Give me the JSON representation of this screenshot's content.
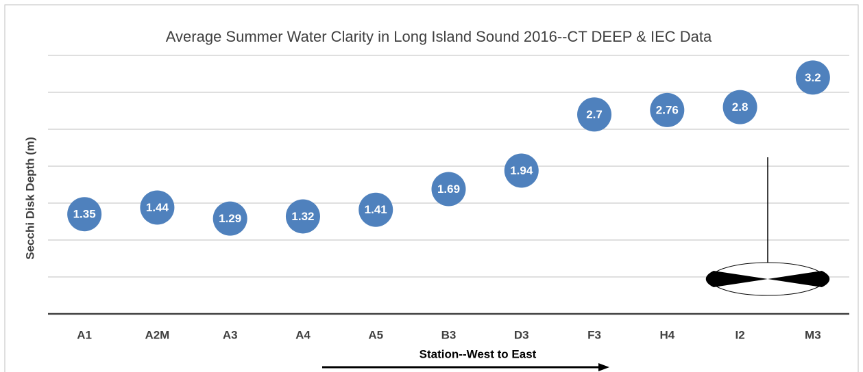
{
  "chart_data": {
    "type": "scatter",
    "title": "Average Summer Water Clarity in Long Island Sound 2016--CT DEEP & IEC Data",
    "x_label": "Station--West to East",
    "y_label": "Secchi Disk Depth (m)",
    "categories": [
      "A1",
      "A2M",
      "A3",
      "A4",
      "A5",
      "B3",
      "D3",
      "F3",
      "H4",
      "I2",
      "M3"
    ],
    "values": [
      1.35,
      1.44,
      1.29,
      1.32,
      1.41,
      1.69,
      1.94,
      2.7,
      2.76,
      2.8,
      3.2
    ],
    "color": "#4f81bd",
    "ylim": [
      0,
      3.5
    ],
    "yticks": [
      0,
      0.5,
      1,
      1.5,
      2,
      2.5,
      3,
      3.5
    ],
    "grid": true
  }
}
